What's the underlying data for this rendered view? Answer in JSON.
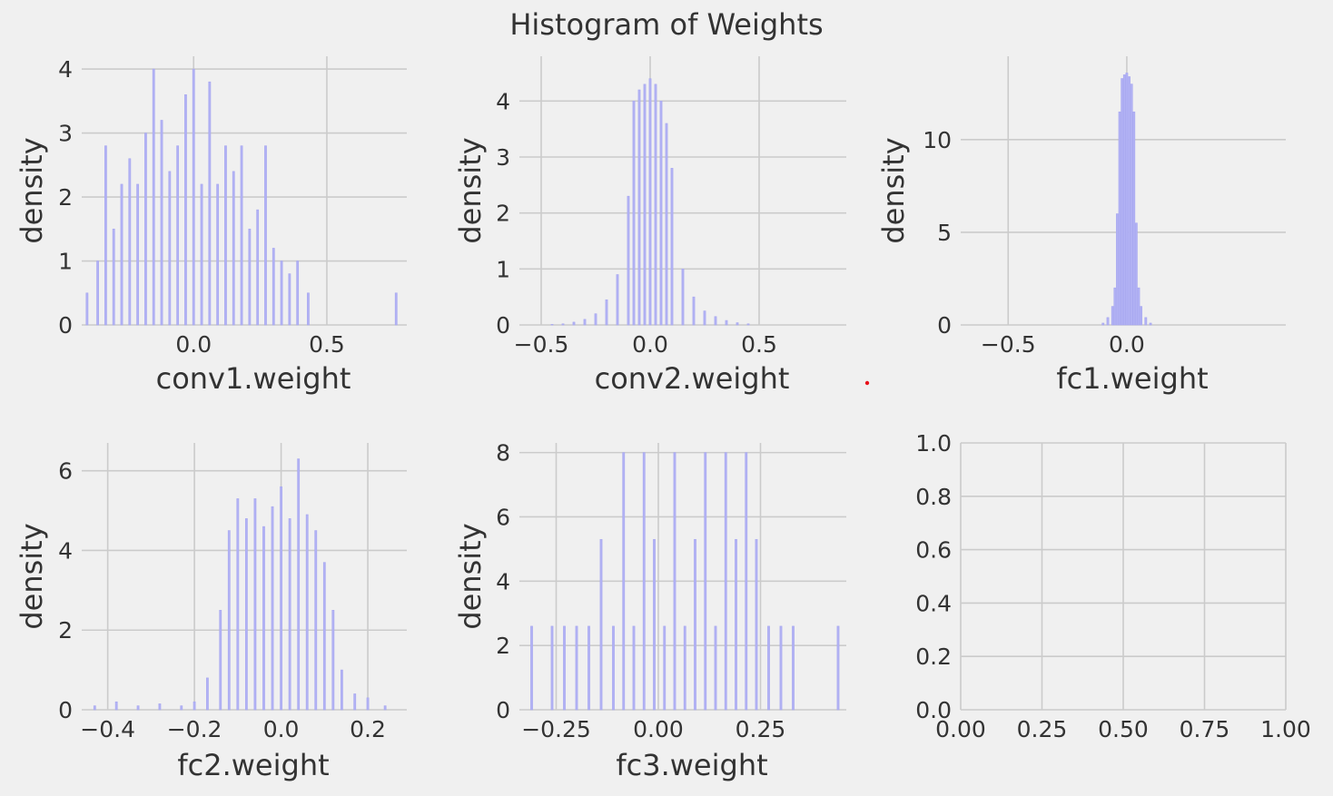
{
  "title": "Histogram of Weights",
  "colors": {
    "background": "#f0f0f0",
    "grid": "#cbcbcb",
    "bar": "#b2b2f4",
    "text": "#333333",
    "marker": "#e8101a"
  },
  "chart_data": [
    {
      "type": "bar",
      "xlabel": "conv1.weight",
      "ylabel": "density",
      "xlim": [
        -0.42,
        0.8
      ],
      "ylim": [
        0,
        4.2
      ],
      "xticks": [
        0.0,
        0.5
      ],
      "xtick_labels": [
        "0.0",
        "0.5"
      ],
      "yticks": [
        0,
        1,
        2,
        3,
        4
      ],
      "ytick_labels": [
        "0",
        "1",
        "2",
        "3",
        "4"
      ],
      "grid": true,
      "x": [
        -0.4,
        -0.36,
        -0.33,
        -0.3,
        -0.27,
        -0.24,
        -0.21,
        -0.18,
        -0.15,
        -0.12,
        -0.09,
        -0.06,
        -0.03,
        0.0,
        0.03,
        0.06,
        0.09,
        0.12,
        0.15,
        0.18,
        0.21,
        0.24,
        0.27,
        0.3,
        0.33,
        0.36,
        0.39,
        0.43,
        0.76
      ],
      "values": [
        0.5,
        1.0,
        2.8,
        1.5,
        2.2,
        2.6,
        2.2,
        3.0,
        4.0,
        3.2,
        2.4,
        2.8,
        3.6,
        4.0,
        2.2,
        3.8,
        2.2,
        2.8,
        2.4,
        2.8,
        1.5,
        1.8,
        2.8,
        1.2,
        1.0,
        0.8,
        1.0,
        0.5,
        0.5
      ]
    },
    {
      "type": "bar",
      "xlabel": "conv2.weight",
      "ylabel": "density",
      "xlim": [
        -0.6,
        0.9
      ],
      "ylim": [
        0,
        4.8
      ],
      "xticks": [
        -0.5,
        0.0,
        0.5
      ],
      "xtick_labels": [
        "−0.5",
        "0.0",
        "0.5"
      ],
      "yticks": [
        0,
        1,
        2,
        3,
        4
      ],
      "ytick_labels": [
        "0",
        "1",
        "2",
        "3",
        "4"
      ],
      "grid": true,
      "x": [
        -0.45,
        -0.4,
        -0.35,
        -0.3,
        -0.25,
        -0.2,
        -0.15,
        -0.1,
        -0.075,
        -0.05,
        -0.025,
        0.0,
        0.025,
        0.05,
        0.075,
        0.1,
        0.15,
        0.2,
        0.25,
        0.3,
        0.35,
        0.4,
        0.45
      ],
      "values": [
        0.01,
        0.02,
        0.05,
        0.1,
        0.2,
        0.45,
        0.9,
        2.3,
        4.0,
        4.2,
        4.3,
        4.4,
        4.3,
        4.0,
        3.6,
        2.8,
        1.0,
        0.5,
        0.25,
        0.15,
        0.08,
        0.04,
        0.02
      ]
    },
    {
      "type": "bar",
      "xlabel": "fc1.weight",
      "ylabel": "density",
      "xlim": [
        -0.7,
        0.67
      ],
      "ylim": [
        0,
        14.5
      ],
      "xticks": [
        -0.5,
        0.0
      ],
      "xtick_labels": [
        "−0.5",
        "0.0"
      ],
      "yticks": [
        0,
        5,
        10
      ],
      "ytick_labels": [
        "0",
        "5",
        "10"
      ],
      "grid": true,
      "x": [
        -0.1,
        -0.08,
        -0.06,
        -0.05,
        -0.04,
        -0.03,
        -0.02,
        -0.01,
        0.0,
        0.01,
        0.02,
        0.03,
        0.04,
        0.05,
        0.06,
        0.08,
        0.1
      ],
      "values": [
        0.1,
        0.4,
        1.0,
        2.0,
        6.0,
        11.5,
        13.3,
        13.5,
        13.6,
        13.4,
        13.0,
        11.5,
        5.5,
        2.0,
        1.0,
        0.4,
        0.1
      ]
    },
    {
      "type": "bar",
      "xlabel": "fc2.weight",
      "ylabel": "density",
      "xlim": [
        -0.46,
        0.29
      ],
      "ylim": [
        0,
        6.7
      ],
      "xticks": [
        -0.4,
        -0.2,
        0.0,
        0.2
      ],
      "xtick_labels": [
        "−0.4",
        "−0.2",
        "0.0",
        "0.2"
      ],
      "yticks": [
        0,
        2,
        4,
        6
      ],
      "ytick_labels": [
        "0",
        "2",
        "4",
        "6"
      ],
      "grid": true,
      "x": [
        -0.43,
        -0.38,
        -0.33,
        -0.28,
        -0.23,
        -0.2,
        -0.17,
        -0.14,
        -0.12,
        -0.1,
        -0.08,
        -0.06,
        -0.04,
        -0.02,
        0.0,
        0.02,
        0.04,
        0.06,
        0.08,
        0.1,
        0.12,
        0.14,
        0.17,
        0.2,
        0.24
      ],
      "values": [
        0.1,
        0.2,
        0.1,
        0.15,
        0.1,
        0.2,
        0.8,
        2.5,
        4.5,
        5.3,
        4.8,
        5.3,
        4.6,
        5.1,
        5.6,
        4.8,
        6.3,
        4.9,
        4.5,
        3.7,
        2.5,
        1.0,
        0.4,
        0.3,
        0.1
      ]
    },
    {
      "type": "bar",
      "xlabel": "fc3.weight",
      "ylabel": "density",
      "xlim": [
        -0.34,
        0.46
      ],
      "ylim": [
        0,
        8.3
      ],
      "xticks": [
        -0.25,
        0.0,
        0.25
      ],
      "xtick_labels": [
        "−0.25",
        "0.00",
        "0.25"
      ],
      "yticks": [
        0,
        2,
        4,
        6,
        8
      ],
      "ytick_labels": [
        "0",
        "2",
        "4",
        "6",
        "8"
      ],
      "grid": true,
      "x": [
        -0.31,
        -0.26,
        -0.23,
        -0.2,
        -0.17,
        -0.14,
        -0.11,
        -0.085,
        -0.06,
        -0.035,
        -0.01,
        0.015,
        0.04,
        0.065,
        0.09,
        0.115,
        0.14,
        0.165,
        0.19,
        0.215,
        0.24,
        0.27,
        0.3,
        0.33,
        0.44
      ],
      "values": [
        2.6,
        2.6,
        2.6,
        2.6,
        2.6,
        5.3,
        2.6,
        8.0,
        2.6,
        8.0,
        5.3,
        2.6,
        8.0,
        2.6,
        5.3,
        8.0,
        2.6,
        8.0,
        5.3,
        8.0,
        5.3,
        2.6,
        2.6,
        2.6,
        2.6
      ]
    },
    {
      "type": "bar",
      "xlabel": "",
      "ylabel": "",
      "xlim": [
        0.0,
        1.0
      ],
      "ylim": [
        0.0,
        1.0
      ],
      "xticks": [
        0.0,
        0.25,
        0.5,
        0.75,
        1.0
      ],
      "xtick_labels": [
        "0.00",
        "0.25",
        "0.50",
        "0.75",
        "1.00"
      ],
      "yticks": [
        0.0,
        0.2,
        0.4,
        0.6,
        0.8,
        1.0
      ],
      "ytick_labels": [
        "0.0",
        "0.2",
        "0.4",
        "0.6",
        "0.8",
        "1.0"
      ],
      "grid": true,
      "x": [],
      "values": []
    }
  ]
}
